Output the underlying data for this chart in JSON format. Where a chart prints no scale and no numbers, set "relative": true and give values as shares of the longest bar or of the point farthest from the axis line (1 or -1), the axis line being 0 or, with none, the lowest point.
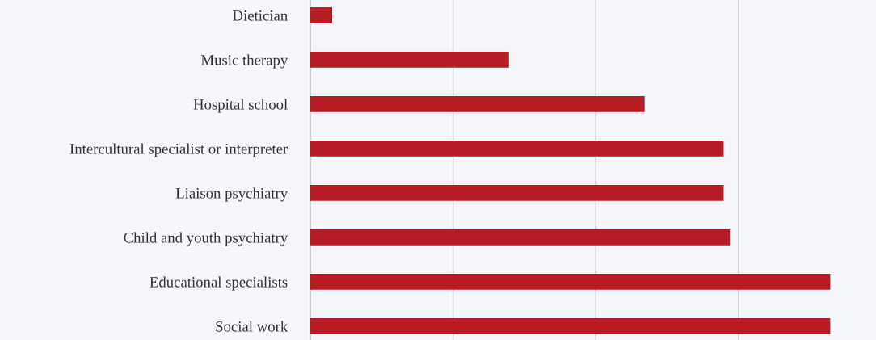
{
  "chart_data": {
    "type": "bar",
    "orientation": "horizontal",
    "relative": true,
    "categories": [
      "Dietician",
      "Music therapy",
      "Hospital school",
      "Intercultural specialist or interpreter",
      "Liaison psychiatry",
      "Child and youth psychiatry",
      "Educational specialists",
      "Social work"
    ],
    "values": [
      0.042,
      0.382,
      0.643,
      0.795,
      0.795,
      0.807,
      1,
      1
    ],
    "color": "#b71c24",
    "grid": "x",
    "legend": false
  }
}
